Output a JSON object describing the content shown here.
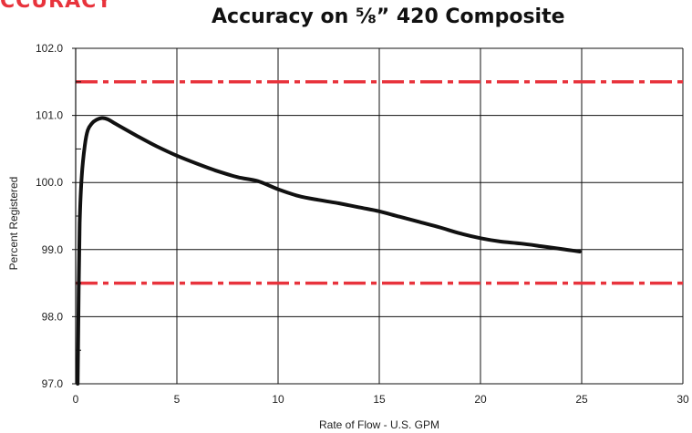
{
  "header": {
    "section_label": "CCURACY"
  },
  "colors": {
    "limit_line": "#e8333c",
    "curve": "#111111",
    "grid": "#111111"
  },
  "chart_data": {
    "type": "line",
    "title": "Accuracy on ⅝” 420 Composite",
    "xlabel": "Rate of Flow - U.S. GPM",
    "ylabel": "Percent Registered",
    "xlim": [
      0,
      30
    ],
    "ylim": [
      97.0,
      102.0
    ],
    "x_ticks": [
      "0",
      "5",
      "10",
      "15",
      "20",
      "25",
      "30"
    ],
    "y_ticks": [
      "97.0",
      "98.0",
      "99.0",
      "100.0",
      "101.0",
      "102.0"
    ],
    "grid": true,
    "series": [
      {
        "x": [
          0.1,
          0.15,
          0.2,
          0.3,
          0.45,
          0.6,
          0.8,
          1.0,
          1.3,
          1.6,
          2.0,
          3.0,
          4.0,
          5.0,
          6.0,
          7.0,
          8.0,
          9.0,
          10.0,
          11.0,
          12.0,
          13.0,
          14.0,
          15.0,
          16.0,
          17.0,
          18.0,
          19.0,
          20.0,
          21.0,
          22.0,
          23.0,
          24.0,
          24.9
        ],
        "y": [
          97.0,
          98.4,
          99.4,
          100.1,
          100.55,
          100.78,
          100.88,
          100.93,
          100.96,
          100.94,
          100.87,
          100.7,
          100.54,
          100.4,
          100.28,
          100.17,
          100.08,
          100.02,
          99.9,
          99.8,
          99.74,
          99.69,
          99.63,
          99.57,
          99.49,
          99.41,
          99.33,
          99.24,
          99.17,
          99.12,
          99.09,
          99.05,
          99.01,
          98.97
        ]
      }
    ],
    "reference_lines": [
      {
        "orientation": "horizontal",
        "value": 101.5,
        "style": "dash-dot"
      },
      {
        "orientation": "horizontal",
        "value": 98.5,
        "style": "dash-dot"
      }
    ]
  }
}
